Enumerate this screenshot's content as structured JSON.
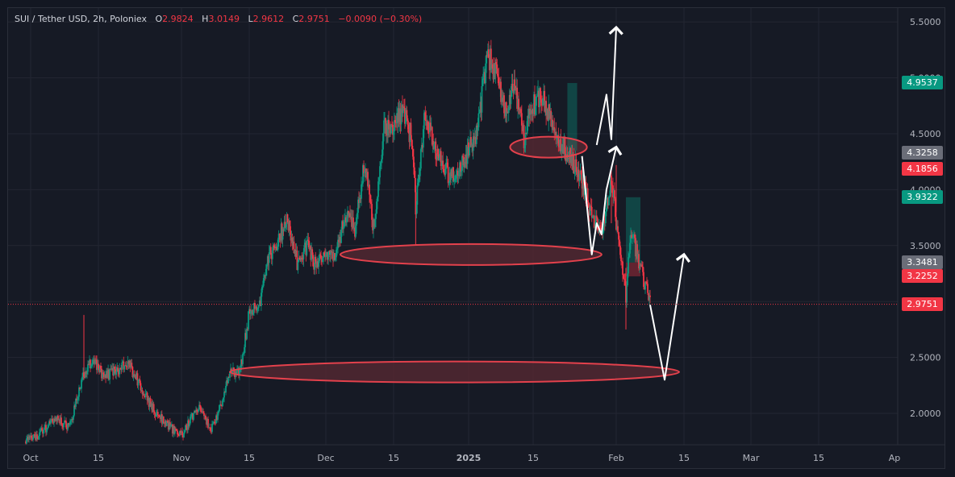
{
  "header": {
    "symbol": "SUI / Tether USD, 2h, Poloniex",
    "o_label": "O",
    "o": "2.9824",
    "h_label": "H",
    "h": "3.0149",
    "l_label": "L",
    "l": "2.9612",
    "c_label": "C",
    "c": "2.9751",
    "change": "−0.0090 (−0.30%)"
  },
  "colors": {
    "background": "#161a25",
    "grid": "#232632",
    "text": "#b2b5be",
    "up": "#089981",
    "down": "#f23645",
    "zone_fill": "#5a2a33",
    "zone_stroke": "#e3414c",
    "arrow": "#ffffff"
  },
  "price_badges": [
    {
      "value": "4.9537",
      "color": "#089981"
    },
    {
      "value": "4.3258",
      "color": "#6a6d78"
    },
    {
      "value": "4.1856",
      "color": "#f23645"
    },
    {
      "value": "3.9322",
      "color": "#089981"
    },
    {
      "value": "3.3481",
      "color": "#6a6d78"
    },
    {
      "value": "3.2252",
      "color": "#f23645"
    },
    {
      "value": "2.9751",
      "color": "#f23645"
    }
  ],
  "chart_data": {
    "type": "candlestick",
    "y_axis_side": "right",
    "y_ticks": [
      "5.5000",
      "5.0000",
      "4.5000",
      "4.0000",
      "3.5000",
      "3.0000",
      "2.5000",
      "2.0000"
    ],
    "y_tick_values": [
      5.5,
      5.0,
      4.5,
      4.0,
      3.5,
      3.0,
      2.5,
      2.0
    ],
    "ylim": [
      1.72,
      5.62
    ],
    "x_ticks": [
      "Oct",
      "15",
      "Nov",
      "15",
      "Dec",
      "15",
      "2025",
      "15",
      "Feb",
      "15",
      "Mar",
      "15",
      "Ap"
    ],
    "x_tick_dates": [
      "2024-10-01",
      "2024-10-15",
      "2024-11-01",
      "2024-11-15",
      "2024-12-01",
      "2024-12-15",
      "2025-01-01",
      "2025-01-15",
      "2025-02-01",
      "2025-02-15",
      "2025-03-01",
      "2025-03-15",
      "2025-04-01"
    ],
    "last_price": 2.9751,
    "close_path": [
      [
        "2024-09-30",
        1.75
      ],
      [
        "2024-10-03",
        1.82
      ],
      [
        "2024-10-06",
        1.95
      ],
      [
        "2024-10-09",
        1.88
      ],
      [
        "2024-10-12",
        2.35
      ],
      [
        "2024-10-14",
        2.48
      ],
      [
        "2024-10-16",
        2.33
      ],
      [
        "2024-10-19",
        2.38
      ],
      [
        "2024-10-21",
        2.45
      ],
      [
        "2024-10-23",
        2.3
      ],
      [
        "2024-10-26",
        2.05
      ],
      [
        "2024-10-29",
        1.9
      ],
      [
        "2024-11-01",
        1.8
      ],
      [
        "2024-11-03",
        1.95
      ],
      [
        "2024-11-05",
        2.05
      ],
      [
        "2024-11-07",
        1.85
      ],
      [
        "2024-11-09",
        2.05
      ],
      [
        "2024-11-11",
        2.4
      ],
      [
        "2024-11-13",
        2.35
      ],
      [
        "2024-11-15",
        2.9
      ],
      [
        "2024-11-17",
        2.95
      ],
      [
        "2024-11-19",
        3.4
      ],
      [
        "2024-11-21",
        3.55
      ],
      [
        "2024-11-23",
        3.75
      ],
      [
        "2024-11-25",
        3.35
      ],
      [
        "2024-11-27",
        3.5
      ],
      [
        "2024-11-29",
        3.3
      ],
      [
        "2024-12-01",
        3.45
      ],
      [
        "2024-12-03",
        3.4
      ],
      [
        "2024-12-05",
        3.8
      ],
      [
        "2024-12-07",
        3.65
      ],
      [
        "2024-12-09",
        4.25
      ],
      [
        "2024-12-11",
        3.6
      ],
      [
        "2024-12-13",
        4.6
      ],
      [
        "2024-12-15",
        4.5
      ],
      [
        "2024-12-17",
        4.75
      ],
      [
        "2024-12-19",
        4.45
      ],
      [
        "2024-12-20",
        3.85
      ],
      [
        "2024-12-22",
        4.65
      ],
      [
        "2024-12-24",
        4.4
      ],
      [
        "2024-12-26",
        4.25
      ],
      [
        "2024-12-28",
        4.1
      ],
      [
        "2024-12-30",
        4.2
      ],
      [
        "2025-01-01",
        4.35
      ],
      [
        "2025-01-03",
        4.55
      ],
      [
        "2025-01-05",
        5.2
      ],
      [
        "2025-01-07",
        5.05
      ],
      [
        "2025-01-09",
        4.7
      ],
      [
        "2025-01-11",
        4.95
      ],
      [
        "2025-01-13",
        4.45
      ],
      [
        "2025-01-15",
        4.75
      ],
      [
        "2025-01-17",
        4.85
      ],
      [
        "2025-01-19",
        4.55
      ],
      [
        "2025-01-21",
        4.4
      ],
      [
        "2025-01-23",
        4.25
      ],
      [
        "2025-01-25",
        4.1
      ],
      [
        "2025-01-27",
        3.75
      ],
      [
        "2025-01-29",
        3.6
      ],
      [
        "2025-01-31",
        4.1
      ],
      [
        "2025-02-02",
        3.35
      ],
      [
        "2025-02-03",
        3.05
      ],
      [
        "2025-02-04",
        3.65
      ],
      [
        "2025-02-06",
        3.3
      ],
      [
        "2025-02-07",
        3.15
      ],
      [
        "2025-02-08",
        2.975
      ]
    ],
    "zones": [
      {
        "name": "support-zone-1",
        "date_from": "2025-01-10",
        "date_to": "2025-01-26",
        "price": 4.38
      },
      {
        "name": "support-zone-2",
        "date_from": "2024-12-04",
        "date_to": "2025-01-29",
        "price": 3.42
      },
      {
        "name": "support-zone-3",
        "date_from": "2024-11-11",
        "date_to": "2025-02-14",
        "price": 2.37
      }
    ],
    "projection_up": [
      [
        "2025-01-28",
        4.4
      ],
      [
        "2025-01-30",
        4.85
      ],
      [
        "2025-01-31",
        4.45
      ],
      [
        "2025-02-01",
        5.45
      ]
    ],
    "projection_swing": [
      [
        "2025-01-25",
        4.3
      ],
      [
        "2025-01-27",
        3.42
      ],
      [
        "2025-01-28",
        3.7
      ],
      [
        "2025-01-29",
        3.6
      ],
      [
        "2025-01-30",
        4.0
      ],
      [
        "2025-02-01",
        4.38
      ]
    ],
    "projection_down_up": [
      [
        "2025-02-08",
        2.97
      ],
      [
        "2025-02-11",
        2.3
      ],
      [
        "2025-02-15",
        3.42
      ]
    ]
  }
}
